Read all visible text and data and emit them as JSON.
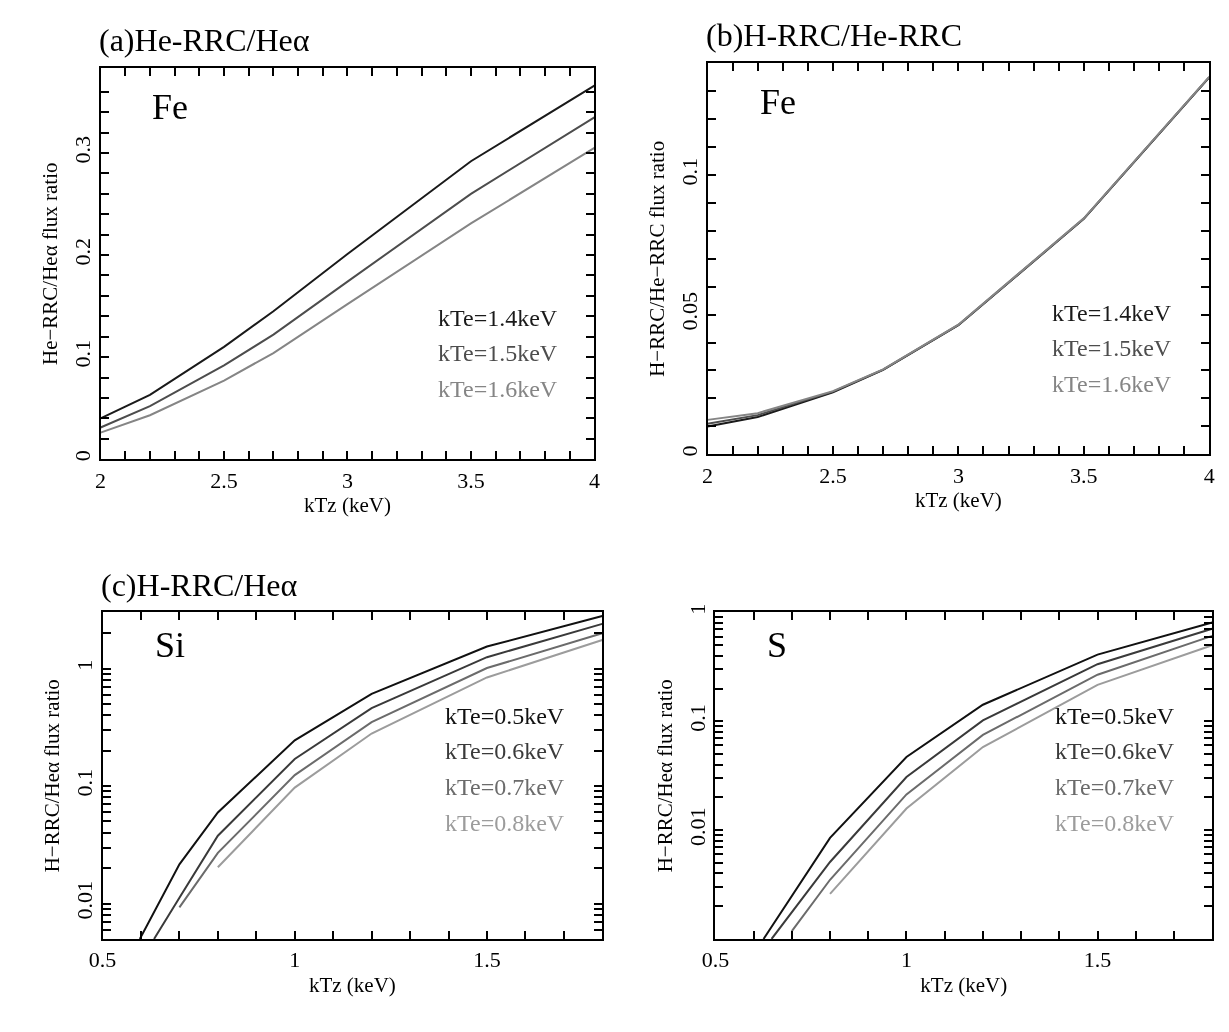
{
  "chart_data": [
    {
      "type": "line",
      "title": "(a)He-RRC/Heα",
      "xlabel": "kTz (keV)",
      "ylabel": "He−RRC/Heα flux ratio",
      "annotations": [
        "Fe"
      ],
      "legend": "bottom right",
      "marker": "none",
      "line_style": "solid",
      "x": [
        2,
        2.2,
        2.5,
        2.7,
        3,
        3.5,
        4
      ],
      "xlim": [
        2,
        4
      ],
      "ylim": [
        0,
        0.383
      ],
      "xticks": [
        2,
        {
          "value": 2.1,
          "label": null
        },
        {
          "value": 2.2,
          "label": null
        },
        {
          "value": 2.3,
          "label": null
        },
        {
          "value": 2.4,
          "label": null
        },
        2.5,
        {
          "value": 2.6,
          "label": null
        },
        {
          "value": 2.7,
          "label": null
        },
        {
          "value": 2.8,
          "label": null
        },
        {
          "value": 2.9,
          "label": null
        },
        3,
        {
          "value": 3.1,
          "label": null
        },
        {
          "value": 3.2,
          "label": null
        },
        {
          "value": 3.3,
          "label": null
        },
        {
          "value": 3.4,
          "label": null
        },
        3.5,
        {
          "value": 3.6,
          "label": null
        },
        {
          "value": 3.7,
          "label": null
        },
        {
          "value": 3.8,
          "label": null
        },
        {
          "value": 3.9,
          "label": null
        },
        4
      ],
      "yticks": [
        0,
        {
          "value": 0.02,
          "label": null
        },
        {
          "value": 0.04,
          "label": null
        },
        {
          "value": 0.06,
          "label": null
        },
        {
          "value": 0.08,
          "label": null
        },
        0.1,
        {
          "value": 0.12,
          "label": null
        },
        {
          "value": 0.14,
          "label": null
        },
        {
          "value": 0.16,
          "label": null
        },
        {
          "value": 0.18,
          "label": null
        },
        0.2,
        {
          "value": 0.22,
          "label": null
        },
        {
          "value": 0.24,
          "label": null
        },
        {
          "value": 0.26,
          "label": null
        },
        {
          "value": 0.28,
          "label": null
        },
        0.3,
        {
          "value": 0.32,
          "label": null
        },
        {
          "value": 0.34,
          "label": null
        },
        {
          "value": 0.36,
          "label": null
        }
      ],
      "series": [
        {
          "name": "kTe=1.4keV",
          "color": "#1a1a1a",
          "values": [
            0.04,
            0.063,
            0.11,
            0.145,
            0.201,
            0.292,
            0.366
          ]
        },
        {
          "name": "kTe=1.5keV",
          "color": "#4d4d4d",
          "values": [
            0.031,
            0.052,
            0.092,
            0.122,
            0.174,
            0.26,
            0.335
          ]
        },
        {
          "name": "kTe=1.6keV",
          "color": "#858585",
          "values": [
            0.026,
            0.043,
            0.077,
            0.104,
            0.152,
            0.231,
            0.305
          ]
        }
      ]
    },
    {
      "type": "line",
      "title": "(b)H-RRC/He-RRC",
      "xlabel": "kTz (keV)",
      "ylabel": "H−RRC/He−RRC flux ratio",
      "annotations": [
        "Fe"
      ],
      "legend": "bottom right",
      "marker": "none",
      "line_style": "solid",
      "x": [
        2,
        2.2,
        2.5,
        2.7,
        3,
        3.5,
        4
      ],
      "xlim": [
        2,
        4
      ],
      "ylim": [
        0,
        0.14
      ],
      "xticks": [
        2,
        {
          "value": 2.1,
          "label": null
        },
        {
          "value": 2.2,
          "label": null
        },
        {
          "value": 2.3,
          "label": null
        },
        {
          "value": 2.4,
          "label": null
        },
        2.5,
        {
          "value": 2.6,
          "label": null
        },
        {
          "value": 2.7,
          "label": null
        },
        {
          "value": 2.8,
          "label": null
        },
        {
          "value": 2.9,
          "label": null
        },
        3,
        {
          "value": 3.1,
          "label": null
        },
        {
          "value": 3.2,
          "label": null
        },
        {
          "value": 3.3,
          "label": null
        },
        {
          "value": 3.4,
          "label": null
        },
        3.5,
        {
          "value": 3.6,
          "label": null
        },
        {
          "value": 3.7,
          "label": null
        },
        {
          "value": 3.8,
          "label": null
        },
        {
          "value": 3.9,
          "label": null
        },
        4
      ],
      "yticks": [
        0,
        {
          "value": 0.01,
          "label": null
        },
        {
          "value": 0.02,
          "label": null
        },
        {
          "value": 0.03,
          "label": null
        },
        {
          "value": 0.04,
          "label": null
        },
        0.05,
        {
          "value": 0.06,
          "label": null
        },
        {
          "value": 0.07,
          "label": null
        },
        {
          "value": 0.08,
          "label": null
        },
        {
          "value": 0.09,
          "label": null
        },
        0.1,
        {
          "value": 0.11,
          "label": null
        },
        {
          "value": 0.12,
          "label": null
        },
        {
          "value": 0.13,
          "label": null
        }
      ],
      "series": [
        {
          "name": "kTe=1.4keV",
          "color": "#1a1a1a",
          "values": [
            0.0099,
            0.0133,
            0.0222,
            0.0302,
            0.0462,
            0.0843,
            0.135
          ]
        },
        {
          "name": "kTe=1.5keV",
          "color": "#4d4d4d",
          "values": [
            0.0109,
            0.014,
            0.0224,
            0.0303,
            0.0463,
            0.0844,
            0.1351
          ]
        },
        {
          "name": "kTe=1.6keV",
          "color": "#858585",
          "values": [
            0.0123,
            0.0147,
            0.0226,
            0.0304,
            0.0464,
            0.0845,
            0.1352
          ]
        }
      ]
    },
    {
      "type": "line",
      "title": "(c)H-RRC/Heα",
      "xlabel": "kTz (keV)",
      "ylabel": "H−RRC/Heα flux ratio",
      "annotations": [
        "Si"
      ],
      "legend": "right",
      "marker": "none",
      "line_style": "solid",
      "log": "y",
      "xlim": [
        0.5,
        1.8
      ],
      "ylim": [
        0.005,
        3
      ],
      "xticks": [
        0.5,
        {
          "value": 0.6,
          "label": null
        },
        {
          "value": 0.7,
          "label": null
        },
        {
          "value": 0.8,
          "label": null
        },
        {
          "value": 0.9,
          "label": null
        },
        1,
        {
          "value": 1.1,
          "label": null
        },
        {
          "value": 1.2,
          "label": null
        },
        {
          "value": 1.3,
          "label": null
        },
        {
          "value": 1.4,
          "label": null
        },
        1.5,
        {
          "value": 1.6,
          "label": null
        },
        {
          "value": 1.7,
          "label": null
        }
      ],
      "yticks": [
        {
          "value": 0.005,
          "label": null
        },
        {
          "value": 0.006,
          "label": null
        },
        {
          "value": 0.007,
          "label": null
        },
        {
          "value": 0.008,
          "label": null
        },
        {
          "value": 0.009,
          "label": null
        },
        0.01,
        {
          "value": 0.02,
          "label": null
        },
        {
          "value": 0.03,
          "label": null
        },
        {
          "value": 0.04,
          "label": null
        },
        {
          "value": 0.05,
          "label": null
        },
        {
          "value": 0.06,
          "label": null
        },
        {
          "value": 0.07,
          "label": null
        },
        {
          "value": 0.08,
          "label": null
        },
        {
          "value": 0.09,
          "label": null
        },
        0.1,
        {
          "value": 0.2,
          "label": null
        },
        {
          "value": 0.3,
          "label": null
        },
        {
          "value": 0.4,
          "label": null
        },
        {
          "value": 0.5,
          "label": null
        },
        {
          "value": 0.6,
          "label": null
        },
        {
          "value": 0.7,
          "label": null
        },
        {
          "value": 0.8,
          "label": null
        },
        {
          "value": 0.9,
          "label": null
        },
        1,
        {
          "value": 2,
          "label": null
        },
        {
          "value": 3,
          "label": null
        }
      ],
      "series": [
        {
          "name": "kTe=0.5keV",
          "color": "#111111",
          "x": [
            0.597,
            0.7,
            0.8,
            1.0,
            1.2,
            1.5,
            1.8
          ],
          "values": [
            0.005,
            0.0216,
            0.0596,
            0.245,
            0.61,
            1.54,
            2.8
          ]
        },
        {
          "name": "kTe=0.6keV",
          "color": "#3a3a3a",
          "x": [
            0.634,
            0.7,
            0.8,
            1.0,
            1.2,
            1.5,
            1.8
          ],
          "values": [
            0.005,
            0.0112,
            0.0378,
            0.17,
            0.46,
            1.25,
            2.4
          ]
        },
        {
          "name": "kTe=0.7keV",
          "color": "#6b6b6b",
          "x": [
            0.7,
            0.8,
            1.0,
            1.2,
            1.5,
            1.8
          ],
          "values": [
            0.0093,
            0.027,
            0.124,
            0.35,
            1.01,
            2.0
          ]
        },
        {
          "name": "kTe=0.8keV",
          "color": "#9c9c9c",
          "x": [
            0.8,
            1.0,
            1.2,
            1.5,
            1.8
          ],
          "values": [
            0.0204,
            0.097,
            0.28,
            0.84,
            1.75
          ]
        }
      ]
    },
    {
      "type": "line",
      "xlabel": "kTz (keV)",
      "ylabel": "H−RRC/Heα flux ratio",
      "annotations": [
        "S"
      ],
      "legend": "right",
      "marker": "none",
      "line_style": "solid",
      "log": "y",
      "xlim": [
        0.5,
        1.8
      ],
      "ylim": [
        0.001,
        1
      ],
      "xticks": [
        0.5,
        {
          "value": 0.6,
          "label": null
        },
        {
          "value": 0.7,
          "label": null
        },
        {
          "value": 0.8,
          "label": null
        },
        {
          "value": 0.9,
          "label": null
        },
        1,
        {
          "value": 1.1,
          "label": null
        },
        {
          "value": 1.2,
          "label": null
        },
        {
          "value": 1.3,
          "label": null
        },
        {
          "value": 1.4,
          "label": null
        },
        1.5,
        {
          "value": 1.6,
          "label": null
        },
        {
          "value": 1.7,
          "label": null
        }
      ],
      "yticks": [
        {
          "value": 0.002,
          "label": null
        },
        {
          "value": 0.003,
          "label": null
        },
        {
          "value": 0.004,
          "label": null
        },
        {
          "value": 0.005,
          "label": null
        },
        {
          "value": 0.006,
          "label": null
        },
        {
          "value": 0.007,
          "label": null
        },
        {
          "value": 0.008,
          "label": null
        },
        {
          "value": 0.009,
          "label": null
        },
        0.01,
        {
          "value": 0.02,
          "label": null
        },
        {
          "value": 0.03,
          "label": null
        },
        {
          "value": 0.04,
          "label": null
        },
        {
          "value": 0.05,
          "label": null
        },
        {
          "value": 0.06,
          "label": null
        },
        {
          "value": 0.07,
          "label": null
        },
        {
          "value": 0.08,
          "label": null
        },
        {
          "value": 0.09,
          "label": null
        },
        0.1,
        {
          "value": 0.2,
          "label": null
        },
        {
          "value": 0.3,
          "label": null
        },
        {
          "value": 0.4,
          "label": null
        },
        {
          "value": 0.5,
          "label": null
        },
        {
          "value": 0.6,
          "label": null
        },
        {
          "value": 0.7,
          "label": null
        },
        {
          "value": 0.8,
          "label": null
        },
        {
          "value": 0.9,
          "label": null
        },
        1
      ],
      "series": [
        {
          "name": "kTe=0.5keV",
          "color": "#111111",
          "x": [
            0.626,
            0.8,
            1.0,
            1.2,
            1.5,
            1.8
          ],
          "values": [
            0.001,
            0.0085,
            0.047,
            0.142,
            0.41,
            0.81
          ]
        },
        {
          "name": "kTe=0.6keV",
          "color": "#3a3a3a",
          "x": [
            0.647,
            0.8,
            1.0,
            1.2,
            1.5,
            1.8
          ],
          "values": [
            0.001,
            0.0051,
            0.0308,
            0.102,
            0.335,
            0.71
          ]
        },
        {
          "name": "kTe=0.7keV",
          "color": "#6b6b6b",
          "x": [
            0.7,
            0.8,
            1.0,
            1.2,
            1.5,
            1.8
          ],
          "values": [
            0.00118,
            0.0035,
            0.0213,
            0.075,
            0.268,
            0.61
          ]
        },
        {
          "name": "kTe=0.8keV",
          "color": "#9c9c9c",
          "x": [
            0.8,
            1.0,
            1.2,
            1.5,
            1.8
          ],
          "values": [
            0.0026,
            0.0158,
            0.058,
            0.216,
            0.5
          ]
        }
      ]
    }
  ]
}
